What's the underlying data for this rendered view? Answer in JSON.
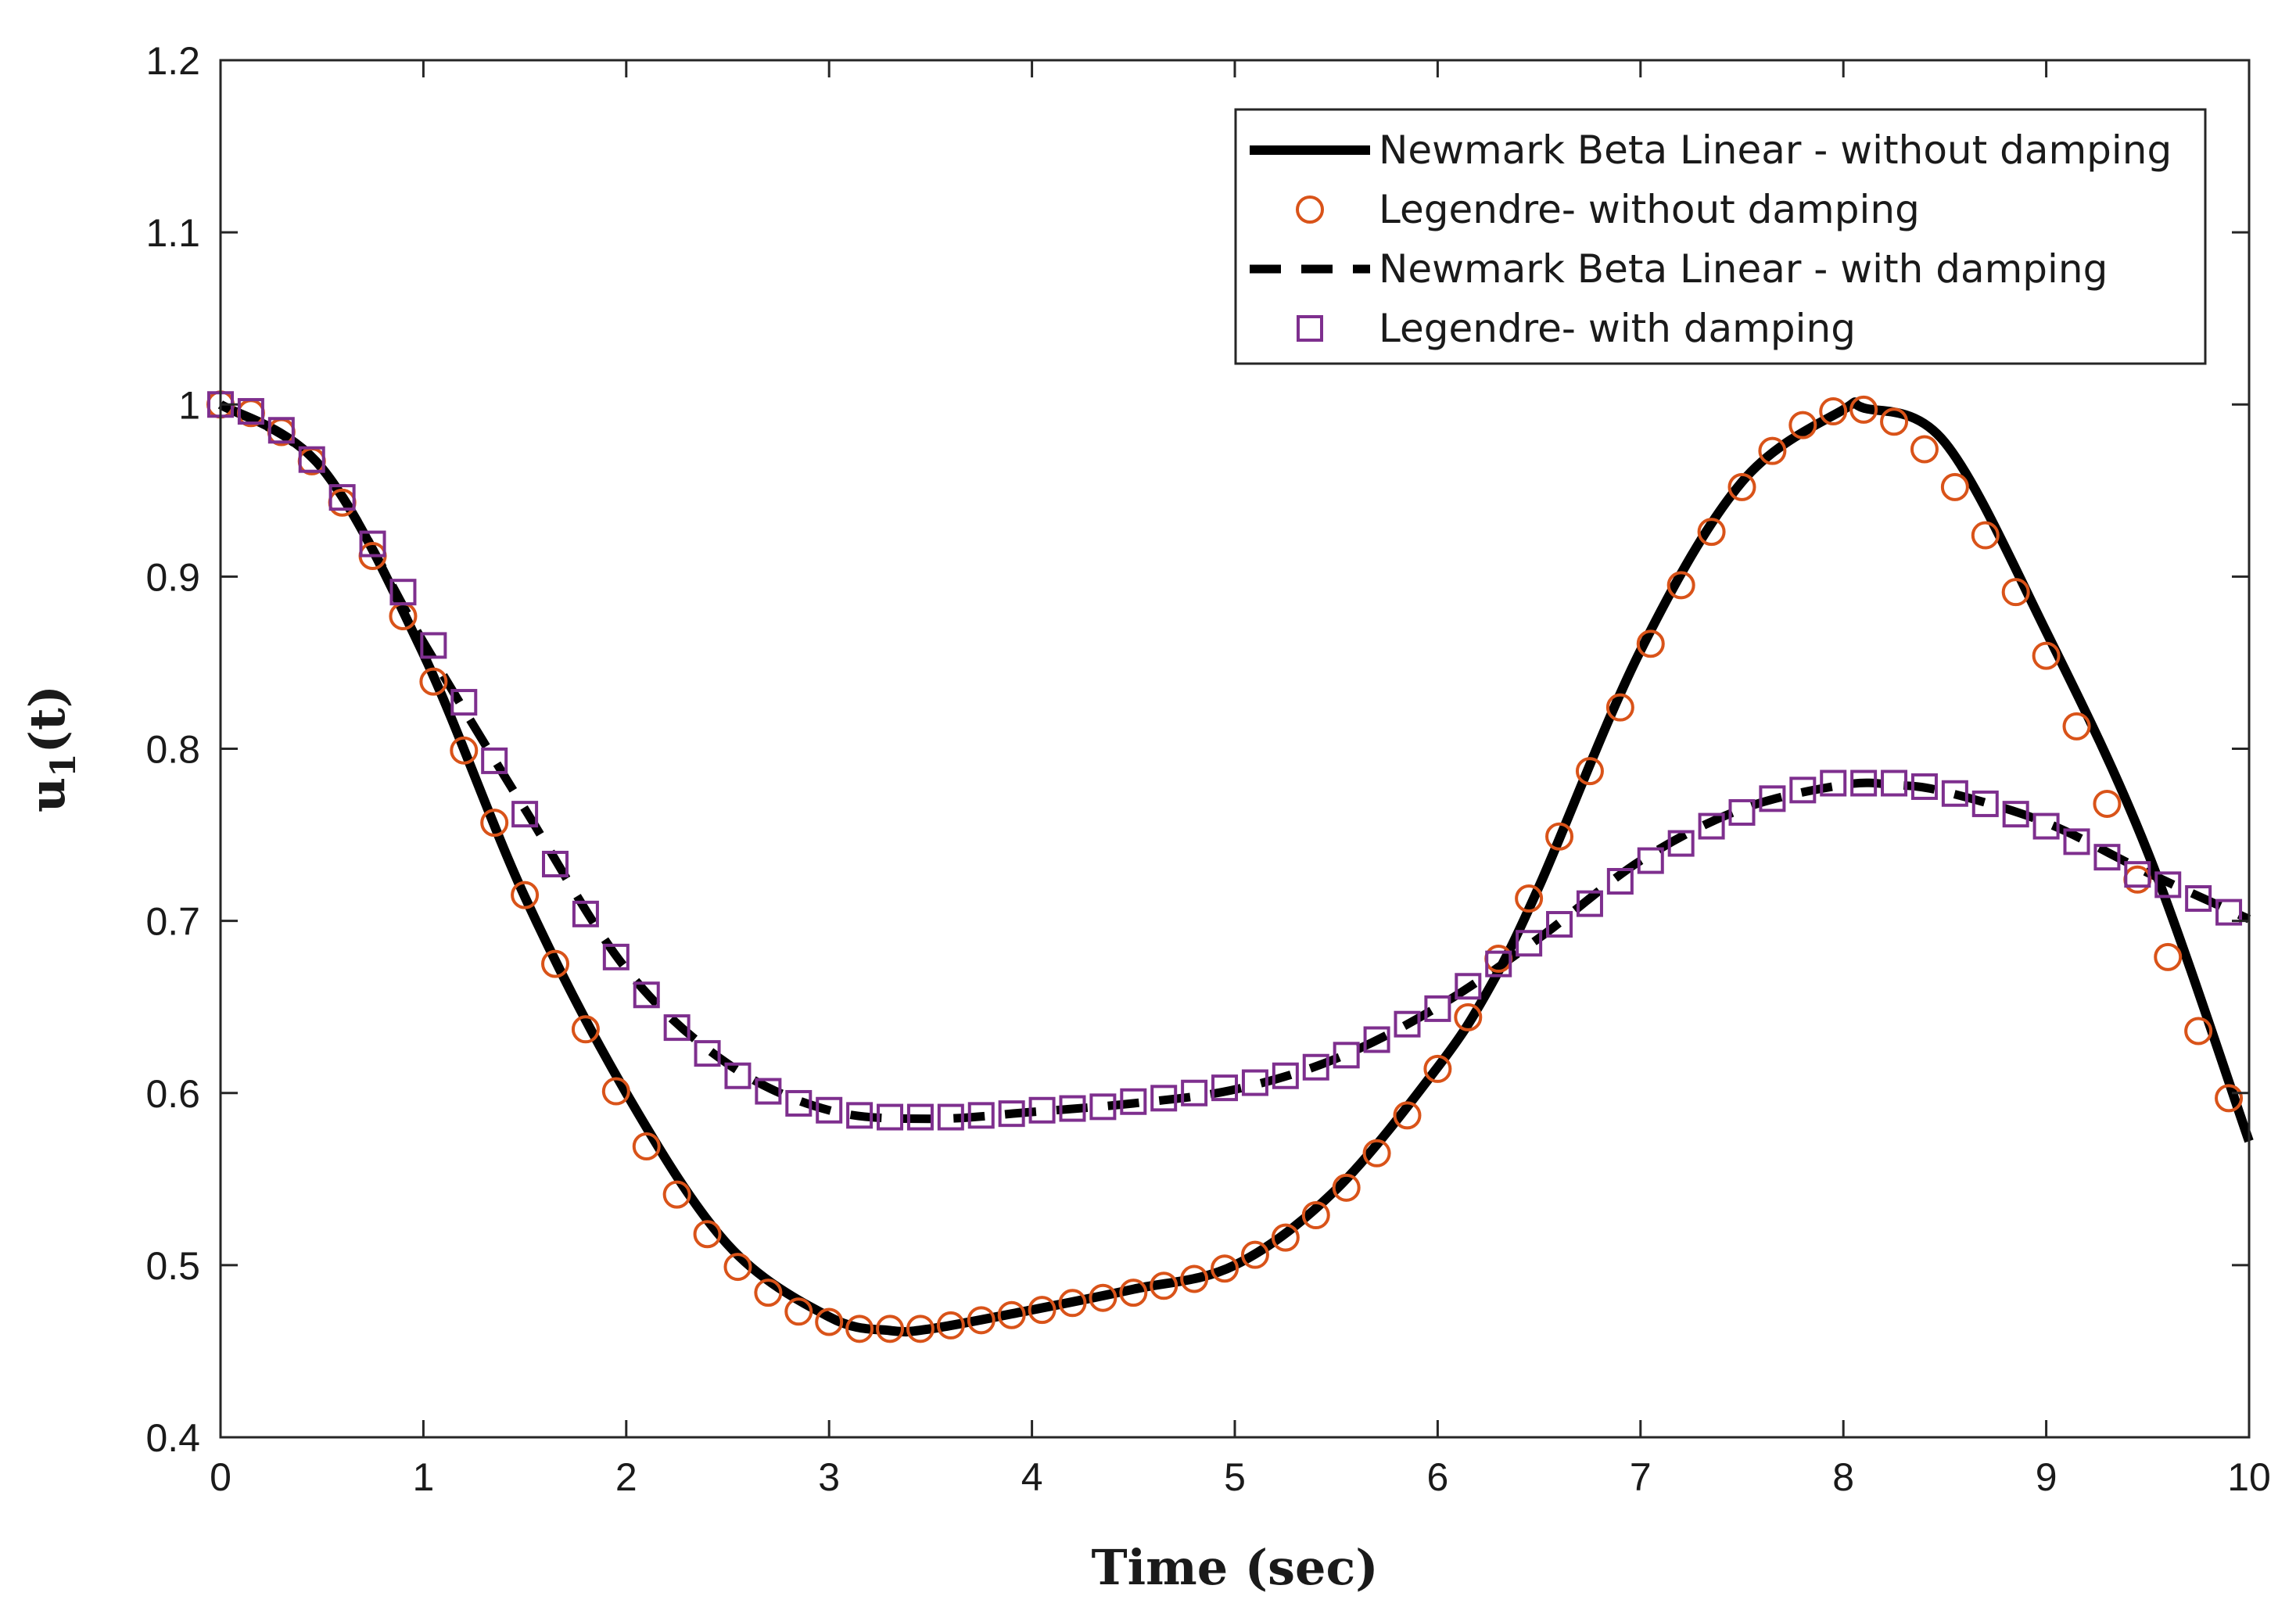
{
  "chart_data": {
    "type": "line",
    "title": "",
    "xlabel": "Time (sec)",
    "ylabel_main": "u",
    "ylabel_sub": "1",
    "ylabel_suffix": "(t)",
    "xlim": [
      0,
      10
    ],
    "ylim": [
      0.4,
      1.2
    ],
    "xticks": [
      0,
      1,
      2,
      3,
      4,
      5,
      6,
      7,
      8,
      9,
      10
    ],
    "xtick_labels": [
      "0",
      "1",
      "2",
      "3",
      "4",
      "5",
      "6",
      "7",
      "8",
      "9",
      "10"
    ],
    "yticks": [
      0.4,
      0.5,
      0.6,
      0.7,
      0.8,
      0.9,
      1.0,
      1.1,
      1.2
    ],
    "ytick_labels": [
      "0.4",
      "0.5",
      "0.6",
      "0.7",
      "0.8",
      "0.9",
      "1",
      "1.1",
      "1.2"
    ],
    "grid": false,
    "legend_position": "top-right",
    "series": [
      {
        "name": "Newmark Beta Linear - without damping",
        "style": "solid",
        "color": "#000000",
        "x": [
          0,
          0.5,
          1,
          1.5,
          2,
          2.5,
          3,
          3.3,
          3.5,
          4,
          4.5,
          5,
          5.5,
          6,
          6.25,
          6.5,
          7,
          7.5,
          8,
          8.1,
          8.5,
          9,
          9.5,
          10
        ],
        "y": [
          1.0,
          0.963,
          0.855,
          0.714,
          0.6,
          0.512,
          0.47,
          0.462,
          0.463,
          0.474,
          0.486,
          0.5,
          0.544,
          0.615,
          0.66,
          0.72,
          0.857,
          0.955,
          0.997,
          0.998,
          0.978,
          0.868,
          0.74,
          0.572
        ]
      },
      {
        "name": "Legendre- without damping",
        "style": "circle",
        "color": "#d95319",
        "x": [
          0,
          0.15,
          0.3,
          0.45,
          0.6,
          0.75,
          0.9,
          1.05,
          1.2,
          1.35,
          1.5,
          1.65,
          1.8,
          1.95,
          2.1,
          2.25,
          2.4,
          2.55,
          2.7,
          2.85,
          3.0,
          3.15,
          3.3,
          3.45,
          3.6,
          3.75,
          3.9,
          4.05,
          4.2,
          4.35,
          4.5,
          4.65,
          4.8,
          4.95,
          5.1,
          5.25,
          5.4,
          5.55,
          5.7,
          5.85,
          6.0,
          6.15,
          6.3,
          6.45,
          6.6,
          6.75,
          6.9,
          7.05,
          7.2,
          7.35,
          7.5,
          7.65,
          7.8,
          7.95,
          8.1,
          8.25,
          8.4,
          8.55,
          8.7,
          8.85,
          9.0,
          9.15,
          9.3,
          9.45,
          9.6,
          9.75,
          9.9
        ],
        "y": [
          1.0,
          0.995,
          0.984,
          0.967,
          0.943,
          0.912,
          0.877,
          0.839,
          0.799,
          0.757,
          0.715,
          0.675,
          0.637,
          0.601,
          0.569,
          0.541,
          0.518,
          0.499,
          0.484,
          0.473,
          0.467,
          0.463,
          0.463,
          0.463,
          0.465,
          0.468,
          0.471,
          0.474,
          0.478,
          0.481,
          0.484,
          0.488,
          0.492,
          0.498,
          0.506,
          0.516,
          0.529,
          0.545,
          0.565,
          0.587,
          0.614,
          0.644,
          0.678,
          0.713,
          0.749,
          0.787,
          0.824,
          0.861,
          0.895,
          0.926,
          0.952,
          0.973,
          0.988,
          0.996,
          0.997,
          0.99,
          0.974,
          0.952,
          0.924,
          0.891,
          0.854,
          0.813,
          0.768,
          0.724,
          0.679,
          0.636,
          0.597
        ]
      },
      {
        "name": "Newmark Beta Linear - with damping",
        "style": "dashed",
        "color": "#000000",
        "x": [
          0,
          0.5,
          1,
          1.5,
          2,
          2.5,
          3,
          3.5,
          4,
          4.5,
          5,
          5.5,
          6,
          6.5,
          7,
          7.5,
          8,
          8.25,
          8.5,
          9,
          9.5,
          10
        ],
        "y": [
          1.0,
          0.963,
          0.862,
          0.765,
          0.672,
          0.617,
          0.59,
          0.585,
          0.589,
          0.594,
          0.602,
          0.62,
          0.65,
          0.69,
          0.735,
          0.765,
          0.779,
          0.779,
          0.775,
          0.757,
          0.728,
          0.701
        ]
      },
      {
        "name": "Legendre- with damping",
        "style": "square",
        "color": "#7e2f8e",
        "x": [
          0,
          0.15,
          0.3,
          0.45,
          0.6,
          0.75,
          0.9,
          1.05,
          1.2,
          1.35,
          1.5,
          1.65,
          1.8,
          1.95,
          2.1,
          2.25,
          2.4,
          2.55,
          2.7,
          2.85,
          3.0,
          3.15,
          3.3,
          3.45,
          3.6,
          3.75,
          3.9,
          4.05,
          4.2,
          4.35,
          4.5,
          4.65,
          4.8,
          4.95,
          5.1,
          5.25,
          5.4,
          5.55,
          5.7,
          5.85,
          6.0,
          6.15,
          6.3,
          6.45,
          6.6,
          6.75,
          6.9,
          7.05,
          7.2,
          7.35,
          7.5,
          7.65,
          7.8,
          7.95,
          8.1,
          8.25,
          8.4,
          8.55,
          8.7,
          8.85,
          9.0,
          9.15,
          9.3,
          9.45,
          9.6,
          9.75,
          9.9
        ],
        "y": [
          1.0,
          0.996,
          0.985,
          0.968,
          0.946,
          0.919,
          0.891,
          0.86,
          0.827,
          0.793,
          0.762,
          0.733,
          0.704,
          0.679,
          0.657,
          0.638,
          0.623,
          0.61,
          0.601,
          0.594,
          0.59,
          0.587,
          0.586,
          0.586,
          0.586,
          0.587,
          0.588,
          0.59,
          0.591,
          0.592,
          0.595,
          0.597,
          0.6,
          0.603,
          0.606,
          0.61,
          0.615,
          0.622,
          0.631,
          0.64,
          0.649,
          0.662,
          0.675,
          0.687,
          0.698,
          0.71,
          0.723,
          0.735,
          0.745,
          0.755,
          0.763,
          0.771,
          0.776,
          0.78,
          0.78,
          0.78,
          0.778,
          0.774,
          0.768,
          0.762,
          0.755,
          0.746,
          0.737,
          0.727,
          0.721,
          0.713,
          0.705
        ]
      }
    ]
  }
}
